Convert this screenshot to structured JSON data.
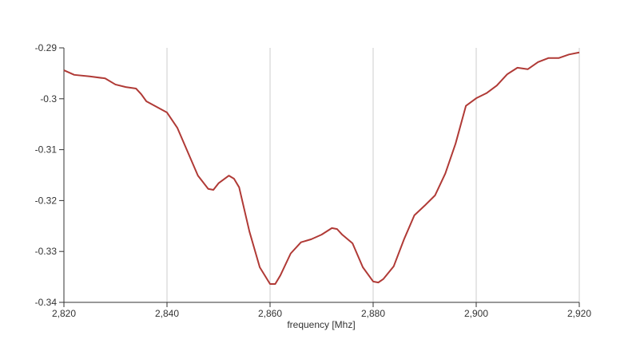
{
  "chart_data": {
    "type": "line",
    "x_label": "frequency [Mhz]",
    "x": [
      2820,
      2822,
      2825,
      2828,
      2830,
      2832,
      2834,
      2835,
      2836,
      2838,
      2840,
      2842,
      2844,
      2846,
      2848,
      2849,
      2850,
      2852,
      2853,
      2854,
      2856,
      2858,
      2860,
      2861,
      2862,
      2864,
      2866,
      2868,
      2870,
      2872,
      2873,
      2874,
      2876,
      2878,
      2880,
      2881,
      2882,
      2884,
      2886,
      2888,
      2890,
      2892,
      2894,
      2896,
      2898,
      2900,
      2902,
      2904,
      2906,
      2908,
      2910,
      2912,
      2914,
      2916,
      2918,
      2920
    ],
    "series": [
      {
        "color": "#b03a36",
        "values": [
          -0.2944,
          -0.2953,
          -0.2956,
          -0.296,
          -0.2972,
          -0.2977,
          -0.298,
          -0.2991,
          -0.3005,
          -0.3016,
          -0.3027,
          -0.3057,
          -0.3104,
          -0.3151,
          -0.3177,
          -0.3179,
          -0.3166,
          -0.3151,
          -0.3157,
          -0.3174,
          -0.3261,
          -0.3331,
          -0.3364,
          -0.3364,
          -0.3347,
          -0.3304,
          -0.3282,
          -0.3276,
          -0.3267,
          -0.3254,
          -0.3256,
          -0.3267,
          -0.3284,
          -0.3331,
          -0.3359,
          -0.3361,
          -0.3354,
          -0.3329,
          -0.3276,
          -0.3229,
          -0.321,
          -0.319,
          -0.3147,
          -0.3088,
          -0.3014,
          -0.2999,
          -0.2989,
          -0.2974,
          -0.2952,
          -0.2939,
          -0.2942,
          -0.2928,
          -0.292,
          -0.292,
          -0.2913,
          -0.2909
        ]
      }
    ],
    "xlim": [
      2820,
      2920
    ],
    "xticks": [
      {
        "value": 2820,
        "label": "2,820"
      },
      {
        "value": 2840,
        "label": "2,840"
      },
      {
        "value": 2860,
        "label": "2,860"
      },
      {
        "value": 2880,
        "label": "2,880"
      },
      {
        "value": 2900,
        "label": "2,900"
      },
      {
        "value": 2920,
        "label": "2,920"
      }
    ],
    "ylim": [
      -0.34,
      -0.29
    ],
    "yticks": [
      -0.34,
      -0.33,
      -0.32,
      -0.31,
      -0.3,
      -0.29
    ],
    "grid": "x"
  }
}
